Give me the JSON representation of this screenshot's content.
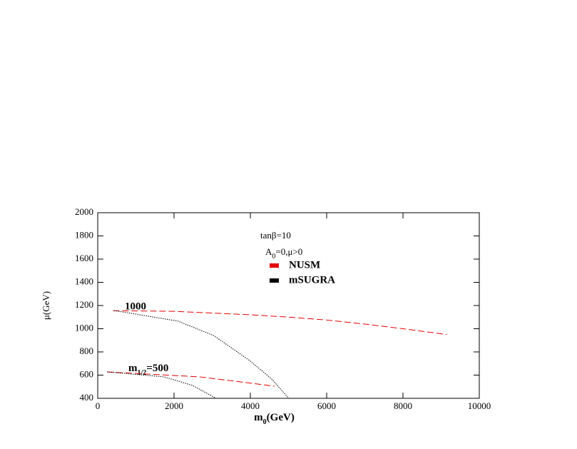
{
  "chart_data": {
    "type": "line",
    "x_label": [
      "m",
      "0",
      "(GeV)"
    ],
    "y_label": "μ(GeV)",
    "xlim": [
      0,
      10000
    ],
    "xticks": [
      0,
      2000,
      4000,
      6000,
      8000,
      10000
    ],
    "ylim": [
      400,
      2000
    ],
    "yticks": [
      400,
      600,
      800,
      1000,
      1200,
      1400,
      1600,
      1800,
      2000
    ],
    "annotations": {
      "tanb": "tanβ=10",
      "a0": [
        "A",
        "0",
        "=0,μ>0"
      ],
      "m1000": "1000",
      "m500": [
        "m",
        "1/2",
        "=500"
      ]
    },
    "series": [
      {
        "name": "NUSM",
        "color": "#e00000",
        "x": [
          400,
          2000,
          4000,
          5000,
          6000,
          7000,
          8000,
          9150
        ],
        "values": [
          1155,
          1150,
          1120,
          1100,
          1075,
          1040,
          1000,
          950
        ]
      },
      {
        "name": "mSUGRA",
        "color": "#000000",
        "x": [
          430,
          2112,
          3047,
          3981,
          4542,
          5009
        ],
        "values": [
          1157,
          1065,
          940,
          726,
          572,
          400
        ]
      },
      {
        "name": "NUSM",
        "color": "#e00000",
        "x": [
          243,
          2673,
          4636
        ],
        "values": [
          628,
          585,
          505
        ]
      },
      {
        "name": "mSUGRA",
        "color": "#000000",
        "x": [
          243,
          1738,
          2486,
          3103
        ],
        "values": [
          628,
          585,
          511,
          400
        ]
      }
    ]
  }
}
